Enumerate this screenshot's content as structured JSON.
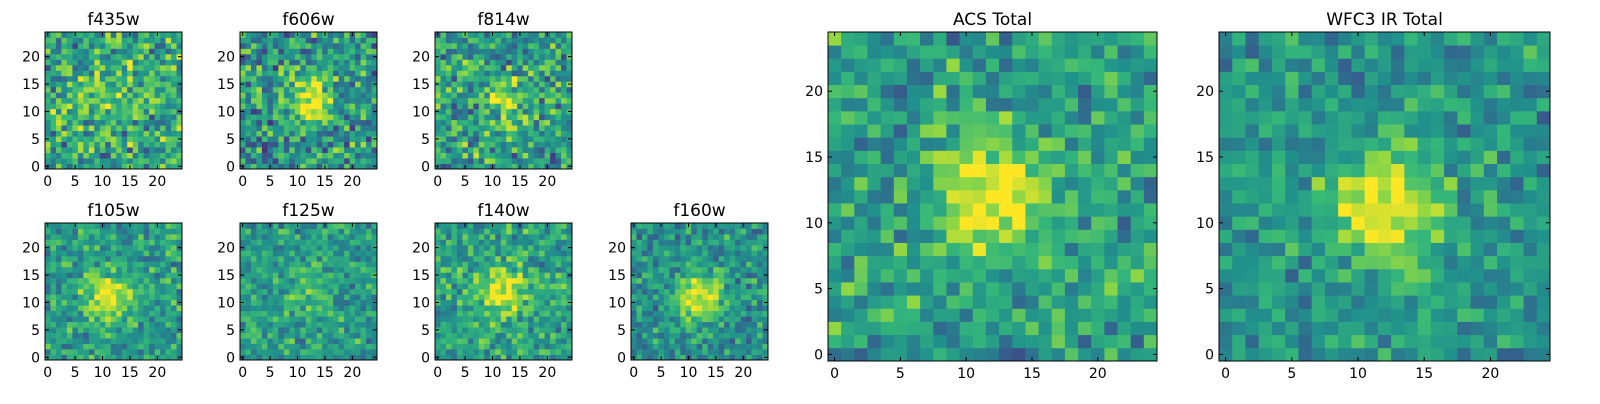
{
  "chart_data": [
    {
      "type": "heatmap",
      "title": "f435w",
      "xticks": [
        0,
        5,
        10,
        15,
        20
      ],
      "yticks": [
        0,
        5,
        10,
        15,
        20
      ],
      "range": [
        0,
        24
      ],
      "center": [
        9,
        14
      ],
      "strength": 0.15,
      "noise": 0.8,
      "seed": 11,
      "base": 0.6
    },
    {
      "type": "heatmap",
      "title": "f606w",
      "xticks": [
        0,
        5,
        10,
        15,
        20
      ],
      "yticks": [
        0,
        5,
        10,
        15,
        20
      ],
      "range": [
        0,
        24
      ],
      "center": [
        12,
        12
      ],
      "strength": 0.45,
      "noise": 0.8,
      "seed": 23,
      "base": 0.52
    },
    {
      "type": "heatmap",
      "title": "f814w",
      "xticks": [
        0,
        5,
        10,
        15,
        20
      ],
      "yticks": [
        0,
        5,
        10,
        15,
        20
      ],
      "range": [
        0,
        24
      ],
      "center": [
        12,
        12
      ],
      "strength": 0.3,
      "noise": 0.8,
      "seed": 37,
      "base": 0.55
    },
    {
      "type": "heatmap",
      "title": "f105w",
      "xticks": [
        0,
        5,
        10,
        15,
        20
      ],
      "yticks": [
        0,
        5,
        10,
        15,
        20
      ],
      "range": [
        0,
        24
      ],
      "center": [
        11,
        11
      ],
      "strength": 0.4,
      "noise": 0.55,
      "seed": 41,
      "base": 0.55
    },
    {
      "type": "heatmap",
      "title": "f125w",
      "xticks": [
        0,
        5,
        10,
        15,
        20
      ],
      "yticks": [
        0,
        5,
        10,
        15,
        20
      ],
      "range": [
        0,
        24
      ],
      "center": [
        12,
        12
      ],
      "strength": 0.15,
      "noise": 0.55,
      "seed": 53,
      "base": 0.55
    },
    {
      "type": "heatmap",
      "title": "f140w",
      "xticks": [
        0,
        5,
        10,
        15,
        20
      ],
      "yticks": [
        0,
        5,
        10,
        15,
        20
      ],
      "range": [
        0,
        24
      ],
      "center": [
        12,
        12
      ],
      "strength": 0.4,
      "noise": 0.55,
      "seed": 67,
      "base": 0.58
    },
    {
      "type": "heatmap",
      "title": "f160w",
      "xticks": [
        0,
        5,
        10,
        15,
        20
      ],
      "yticks": [
        0,
        5,
        10,
        15,
        20
      ],
      "range": [
        0,
        24
      ],
      "center": [
        12,
        11
      ],
      "strength": 0.5,
      "noise": 0.55,
      "seed": 79,
      "base": 0.5
    },
    {
      "type": "heatmap",
      "title": "ACS Total",
      "xticks": [
        0,
        5,
        10,
        15,
        20
      ],
      "yticks": [
        0,
        5,
        10,
        15,
        20
      ],
      "range": [
        0,
        24
      ],
      "center": [
        12,
        12
      ],
      "strength": 0.5,
      "noise": 0.6,
      "seed": 97,
      "base": 0.55
    },
    {
      "type": "heatmap",
      "title": "WFC3 IR Total",
      "xticks": [
        0,
        5,
        10,
        15,
        20
      ],
      "yticks": [
        0,
        5,
        10,
        15,
        20
      ],
      "range": [
        0,
        24
      ],
      "center": [
        12,
        11
      ],
      "strength": 0.5,
      "noise": 0.5,
      "seed": 101,
      "base": 0.52
    }
  ],
  "colormap": [
    "#440154",
    "#443983",
    "#31688e",
    "#21918c",
    "#35b779",
    "#90d743",
    "#fde725"
  ]
}
